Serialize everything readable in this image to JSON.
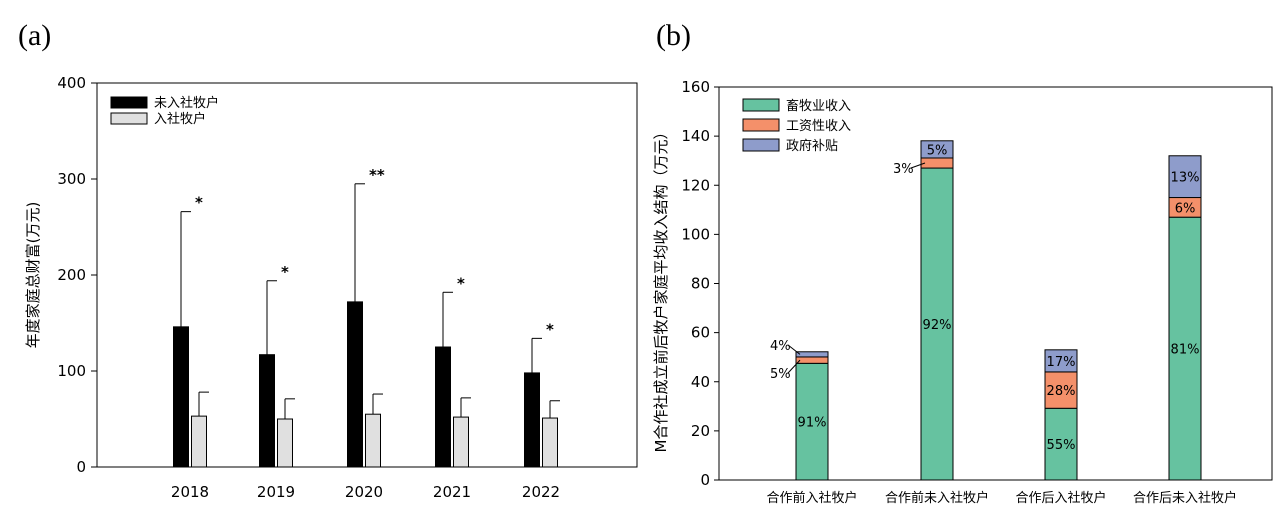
{
  "panel_a_label": "(a)",
  "panel_b_label": "(b)",
  "chart_data": [
    {
      "type": "bar",
      "ylabel": "年度家庭总财富(万元)",
      "ylim": [
        0,
        400
      ],
      "yticks": [
        "0",
        "100",
        "200",
        "300",
        "400"
      ],
      "categories": [
        "2018",
        "2019",
        "2020",
        "2021",
        "2022"
      ],
      "legend_position": "top-left",
      "series": [
        {
          "name": "未入社牧户",
          "color": "#000000",
          "values": [
            146,
            117,
            172,
            125,
            98
          ],
          "errors": [
            120,
            77,
            123,
            57,
            36
          ]
        },
        {
          "name": "入社牧户",
          "color": "#e0e0e0",
          "values": [
            53,
            50,
            55,
            52,
            51
          ],
          "errors": [
            25,
            21,
            21,
            20,
            18
          ]
        }
      ],
      "annotations": [
        "*",
        "*",
        "**",
        "*",
        "*"
      ]
    },
    {
      "type": "bar",
      "stacked": true,
      "ylabel": "M合作社成立前后牧户家庭平均收入结构（万元）",
      "ylim": [
        0,
        160
      ],
      "yticks": [
        "0",
        "20",
        "40",
        "60",
        "80",
        "100",
        "120",
        "140",
        "160"
      ],
      "categories": [
        "合作前入社牧户",
        "合作前未入社牧户",
        "合作后入社牧户",
        "合作后未入社牧户"
      ],
      "legend_position": "top-left",
      "series": [
        {
          "name": "畜牧业收入",
          "color": "#66c2a0",
          "values": [
            47.5,
            127,
            29.2,
            107
          ],
          "labels": [
            "91%",
            "92%",
            "55%",
            "81%"
          ]
        },
        {
          "name": "工资性收入",
          "color": "#f4906a",
          "values": [
            2.6,
            4.1,
            14.8,
            8
          ],
          "labels": [
            "5%",
            "3%",
            "28%",
            "6%"
          ]
        },
        {
          "name": "政府补贴",
          "color": "#8e9ccb",
          "values": [
            2.1,
            7,
            9,
            17
          ],
          "labels": [
            "4%",
            "5%",
            "17%",
            "13%"
          ]
        }
      ]
    }
  ]
}
